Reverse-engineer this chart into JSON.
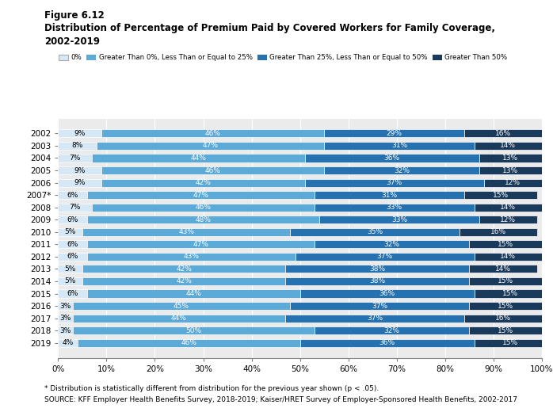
{
  "title_line1": "Figure 6.12",
  "title_line2": "Distribution of Percentage of Premium Paid by Covered Workers for Family Coverage,",
  "title_line3": "2002-2019",
  "years": [
    "2002",
    "2003",
    "2004",
    "2005",
    "2006",
    "2007*",
    "2008",
    "2009",
    "2010",
    "2011",
    "2012",
    "2013",
    "2014",
    "2015",
    "2016",
    "2017",
    "2018",
    "2019"
  ],
  "data": {
    "zero": [
      9,
      8,
      7,
      9,
      9,
      6,
      7,
      6,
      5,
      6,
      6,
      5,
      5,
      6,
      3,
      3,
      3,
      4
    ],
    "lt25": [
      46,
      47,
      44,
      46,
      42,
      47,
      46,
      48,
      43,
      47,
      43,
      42,
      42,
      44,
      45,
      44,
      50,
      46
    ],
    "lt50": [
      29,
      31,
      36,
      32,
      37,
      31,
      33,
      33,
      35,
      32,
      37,
      38,
      38,
      36,
      37,
      37,
      32,
      36
    ],
    "gt50": [
      16,
      14,
      13,
      13,
      12,
      15,
      14,
      12,
      16,
      15,
      14,
      14,
      15,
      15,
      15,
      16,
      15,
      15
    ]
  },
  "colors": {
    "zero": "#d6e8f5",
    "lt25": "#5baad8",
    "lt50": "#2672b0",
    "gt50": "#1a3a5c"
  },
  "legend_labels": [
    "0%",
    "Greater Than 0%, Less Than or Equal to 25%",
    "Greater Than 25%, Less Than or Equal to 50%",
    "Greater Than 50%"
  ],
  "footnote1": "* Distribution is statistically different from distribution for the previous year shown (p < .05).",
  "footnote2": "SOURCE: KFF Employer Health Benefits Survey, 2018-2019; Kaiser/HRET Survey of Employer-Sponsored Health Benefits, 2002-2017",
  "bar_height": 0.65,
  "background_color": "#ffffff",
  "plot_bg_color": "#ebebeb"
}
